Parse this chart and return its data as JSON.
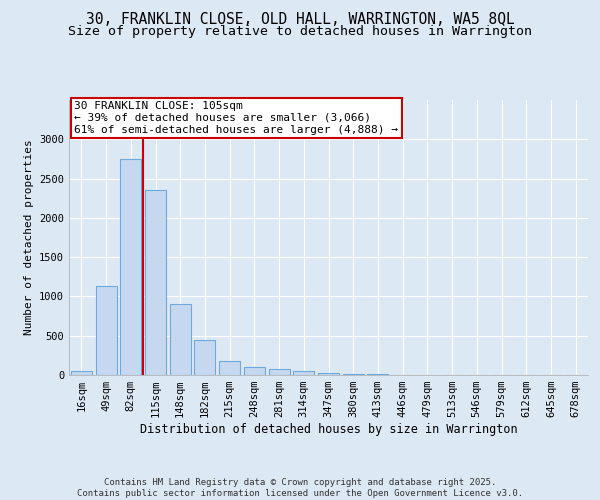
{
  "title": "30, FRANKLIN CLOSE, OLD HALL, WARRINGTON, WA5 8QL",
  "subtitle": "Size of property relative to detached houses in Warrington",
  "xlabel": "Distribution of detached houses by size in Warrington",
  "ylabel": "Number of detached properties",
  "categories": [
    "16sqm",
    "49sqm",
    "82sqm",
    "115sqm",
    "148sqm",
    "182sqm",
    "215sqm",
    "248sqm",
    "281sqm",
    "314sqm",
    "347sqm",
    "380sqm",
    "413sqm",
    "446sqm",
    "479sqm",
    "513sqm",
    "546sqm",
    "579sqm",
    "612sqm",
    "645sqm",
    "678sqm"
  ],
  "values": [
    50,
    1130,
    2750,
    2350,
    900,
    440,
    175,
    105,
    80,
    50,
    30,
    10,
    8,
    0,
    0,
    0,
    0,
    0,
    0,
    0,
    0
  ],
  "bar_color": "#c5d8f0",
  "bar_edge_color": "#6fa8dc",
  "vline_color": "#cc0000",
  "vline_pos": 2.5,
  "annotation_text": "30 FRANKLIN CLOSE: 105sqm\n← 39% of detached houses are smaller (3,066)\n61% of semi-detached houses are larger (4,888) →",
  "annotation_box_color": "#ffffff",
  "annotation_box_edge": "#cc0000",
  "ylim": [
    0,
    3500
  ],
  "yticks": [
    0,
    500,
    1000,
    1500,
    2000,
    2500,
    3000
  ],
  "background_color": "#dde8f5",
  "axes_bg_color": "#dde8f5",
  "footer_text": "Contains HM Land Registry data © Crown copyright and database right 2025.\nContains public sector information licensed under the Open Government Licence v3.0.",
  "title_fontsize": 10.5,
  "subtitle_fontsize": 9.5,
  "xlabel_fontsize": 8.5,
  "ylabel_fontsize": 8,
  "tick_fontsize": 7.5,
  "annotation_fontsize": 8,
  "footer_fontsize": 6.5
}
